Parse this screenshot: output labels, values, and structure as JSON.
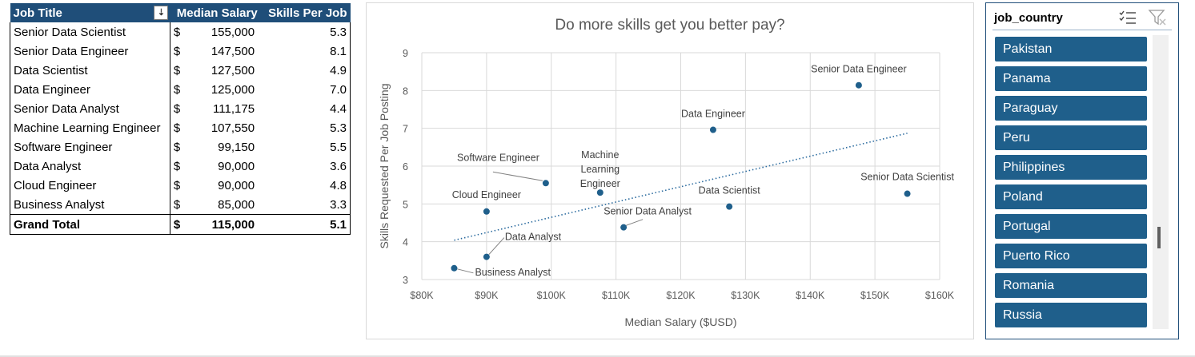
{
  "pivot": {
    "headers": {
      "job_title": "Job Title",
      "median_salary": "Median Salary",
      "skills_per_job": "Skills Per Job"
    },
    "rows": [
      {
        "job": "Senior Data Scientist",
        "currency": "$",
        "salary": "155,000",
        "skills": "5.3"
      },
      {
        "job": "Senior Data Engineer",
        "currency": "$",
        "salary": "147,500",
        "skills": "8.1"
      },
      {
        "job": "Data Scientist",
        "currency": "$",
        "salary": "127,500",
        "skills": "4.9"
      },
      {
        "job": "Data Engineer",
        "currency": "$",
        "salary": "125,000",
        "skills": "7.0"
      },
      {
        "job": "Senior Data Analyst",
        "currency": "$",
        "salary": "111,175",
        "skills": "4.4"
      },
      {
        "job": "Machine Learning Engineer",
        "currency": "$",
        "salary": "107,550",
        "skills": "5.3"
      },
      {
        "job": "Software Engineer",
        "currency": "$",
        "salary": "99,150",
        "skills": "5.5"
      },
      {
        "job": "Data Analyst",
        "currency": "$",
        "salary": "90,000",
        "skills": "3.6"
      },
      {
        "job": "Cloud Engineer",
        "currency": "$",
        "salary": "90,000",
        "skills": "4.8"
      },
      {
        "job": "Business Analyst",
        "currency": "$",
        "salary": "85,000",
        "skills": "3.3"
      }
    ],
    "total": {
      "label": "Grand Total",
      "currency": "$",
      "salary": "115,000",
      "skills": "5.1"
    }
  },
  "chart_data": {
    "type": "scatter",
    "title": "Do more skills get you better pay?",
    "xlabel": "Median Salary ($USD)",
    "ylabel": "Skills Requested Per Job Posting",
    "xlim": [
      80000,
      160000
    ],
    "ylim": [
      3,
      9
    ],
    "x_ticks": [
      "$80K",
      "$90K",
      "$100K",
      "$110K",
      "$120K",
      "$130K",
      "$140K",
      "$150K",
      "$160K"
    ],
    "y_ticks": [
      "3",
      "4",
      "5",
      "6",
      "7",
      "8",
      "9"
    ],
    "grid": true,
    "trendline": {
      "style": "dotted",
      "x": [
        85000,
        155000
      ],
      "y": [
        4.04,
        6.87
      ]
    },
    "points": [
      {
        "label": "Senior Data Scientist",
        "x": 155000,
        "y": 5.27
      },
      {
        "label": "Senior Data Engineer",
        "x": 147500,
        "y": 8.14
      },
      {
        "label": "Data Scientist",
        "x": 127500,
        "y": 4.93
      },
      {
        "label": "Data Engineer",
        "x": 125000,
        "y": 6.96
      },
      {
        "label": "Senior Data Analyst",
        "x": 111175,
        "y": 4.38
      },
      {
        "label": "Machine Learning Engineer",
        "x": 107550,
        "y": 5.3
      },
      {
        "label": "Software Engineer",
        "x": 99150,
        "y": 5.55
      },
      {
        "label": "Data Analyst",
        "x": 90000,
        "y": 3.6
      },
      {
        "label": "Cloud Engineer",
        "x": 90000,
        "y": 4.8
      },
      {
        "label": "Business Analyst",
        "x": 85000,
        "y": 3.3
      }
    ]
  },
  "slicer": {
    "title": "job_country",
    "items": [
      "Pakistan",
      "Panama",
      "Paraguay",
      "Peru",
      "Philippines",
      "Poland",
      "Portugal",
      "Puerto Rico",
      "Romania",
      "Russia"
    ]
  },
  "colors": {
    "header": "#1f4e79",
    "point": "#1f5f8b",
    "slicer_item": "#1f5f8b"
  },
  "icons": [
    "sort-descending-icon",
    "multi-select-icon",
    "clear-filter-icon"
  ]
}
